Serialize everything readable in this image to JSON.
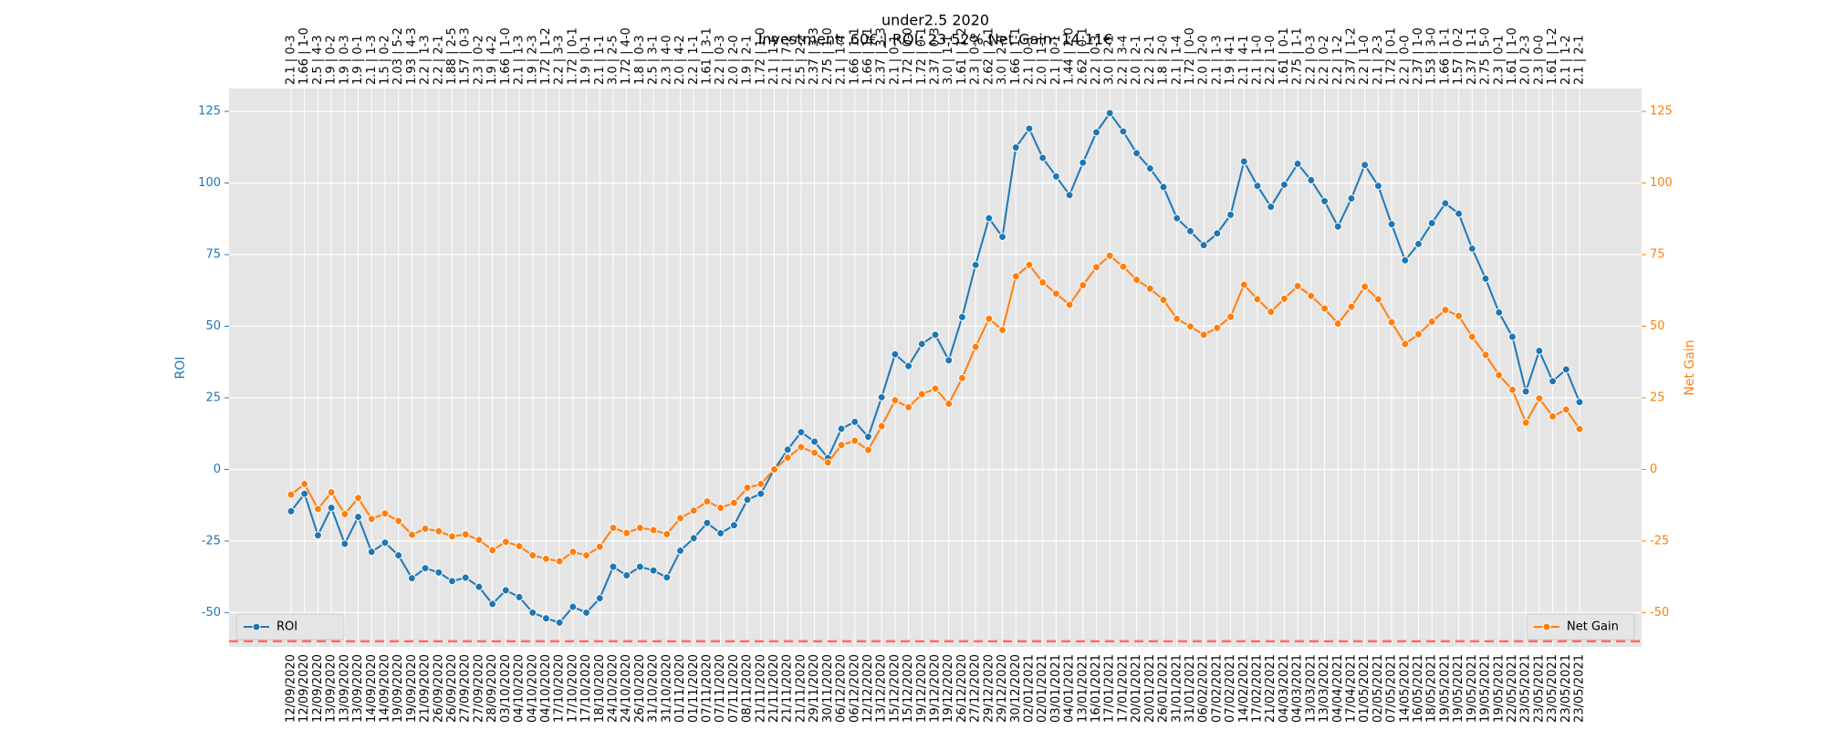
{
  "chart_data": {
    "type": "line",
    "title": "under2.5 2020",
    "subtitle": "Investment: 60€ | ROI: 23.52% Net Gain: 14.11€",
    "ylabel": "ROI",
    "y2label": "Net Gain",
    "categories": [
      "12/09/2020",
      "12/09/2020",
      "12/09/2020",
      "13/09/2020",
      "13/09/2020",
      "13/09/2020",
      "14/09/2020",
      "14/09/2020",
      "19/09/2020",
      "19/09/2020",
      "21/09/2020",
      "26/09/2020",
      "26/09/2020",
      "27/09/2020",
      "27/09/2020",
      "28/09/2020",
      "03/10/2020",
      "04/10/2020",
      "04/10/2020",
      "04/10/2020",
      "17/10/2020",
      "17/10/2020",
      "17/10/2020",
      "18/10/2020",
      "24/10/2020",
      "24/10/2020",
      "26/10/2020",
      "31/10/2020",
      "31/10/2020",
      "01/11/2020",
      "01/11/2020",
      "07/11/2020",
      "07/11/2020",
      "07/11/2020",
      "08/11/2020",
      "21/11/2020",
      "21/11/2020",
      "21/11/2020",
      "21/11/2020",
      "29/11/2020",
      "30/11/2020",
      "06/12/2020",
      "06/12/2020",
      "12/12/2020",
      "13/12/2020",
      "15/12/2020",
      "15/12/2020",
      "19/12/2020",
      "19/12/2020",
      "19/12/2020",
      "26/12/2020",
      "27/12/2020",
      "29/12/2020",
      "29/12/2020",
      "30/12/2020",
      "02/01/2021",
      "02/01/2021",
      "03/01/2021",
      "04/01/2021",
      "13/01/2021",
      "16/01/2021",
      "17/01/2021",
      "17/01/2021",
      "20/01/2021",
      "20/01/2021",
      "26/01/2021",
      "31/01/2021",
      "31/01/2021",
      "06/02/2021",
      "07/02/2021",
      "07/02/2021",
      "14/02/2021",
      "17/02/2021",
      "21/02/2021",
      "04/03/2021",
      "04/03/2021",
      "13/03/2021",
      "13/03/2021",
      "04/04/2021",
      "17/04/2021",
      "01/05/2021",
      "02/05/2021",
      "07/05/2021",
      "14/05/2021",
      "16/05/2021",
      "18/05/2021",
      "19/05/2021",
      "19/05/2021",
      "19/05/2021",
      "19/05/2021",
      "19/05/2021",
      "22/05/2021",
      "23/05/2021",
      "23/05/2021",
      "23/05/2021",
      "23/05/2021",
      "23/05/2021"
    ],
    "top_labels": [
      "2.1 | 0-3",
      "1.66 | 1-0",
      "2.5 | 4-3",
      "1.9 | 0-2",
      "1.9 | 0-3",
      "1.9 | 0-1",
      "2.1 | 1-3",
      "1.5 | 0-2",
      "2.03 | 5-2",
      "1.93 | 4-3",
      "2.2 | 1-3",
      "2.2 | 2-1",
      "1.88 | 2-5",
      "1.57 | 0-3",
      "2.3 | 0-2",
      "1.9 | 4-2",
      "1.66 | 1-0",
      "2.1 | 1-3",
      "1.9 | 2-3",
      "1.72 | 1-2",
      "2.2 | 3-3",
      "1.72 | 0-1",
      "1.9 | 0-1",
      "2.1 | 1-1",
      "3.0 | 2-5",
      "1.72 | 4-0",
      "1.8 | 0-3",
      "2.5 | 3-1",
      "2.3 | 4-0",
      "2.0 | 4-2",
      "2.2 | 1-1",
      "1.61 | 3-1",
      "2.2 | 0-3",
      "2.0 | 2-0",
      "1.9 | 2-1",
      "1.72 | 1-0",
      "2.1 | 1-6",
      "2.1 | 7-2",
      "2.5 | 2-2",
      "2.37 | 3-3",
      "2.75 | 1-0",
      "2.1 | 1-4",
      "1.66 | 1-1",
      "1.66 | 1-1",
      "2.37 | 3-3",
      "2.1 | 0-1",
      "1.72 | 0-0",
      "1.72 | 0-1",
      "2.37 | 0-3",
      "3.0 | 1-1",
      "1.61 | 1-2",
      "2.3 | 0-0",
      "2.62 | 2-1",
      "3.0 | 2-0",
      "1.66 | 1-1",
      "2.1 | 0-1",
      "2.0 | 1-1",
      "2.1 | 0-1",
      "1.44 | 2-0",
      "2.62 | 0-1",
      "2.2 | 0-3",
      "3.0 | 2-1",
      "2.2 | 3-4",
      "2.0 | 2-1",
      "2.2 | 2-1",
      "1.8 | 2-0",
      "2.1 | 1-4",
      "1.72 | 0-0",
      "2.0 | 2-0",
      "2.1 | 1-3",
      "1.9 | 4-1",
      "2.1 | 4-1",
      "2.1 | 1-0",
      "2.2 | 1-0",
      "1.61 | 0-1",
      "2.75 | 1-1",
      "2.2 | 0-3",
      "2.2 | 0-2",
      "2.2 | 1-2",
      "2.37 | 1-2",
      "2.2 | 1-0",
      "2.1 | 2-3",
      "1.72 | 0-1",
      "2.2 | 0-0",
      "2.37 | 1-0",
      "1.53 | 3-0",
      "1.66 | 1-1",
      "1.57 | 0-2",
      "2.37 | 1-1",
      "2.75 | 5-0",
      "2.3 | 0-1",
      "1.61 | 1-0",
      "2.0 | 2-3",
      "2.3 | 0-0",
      "1.61 | 1-2",
      "2.1 | 1-2",
      "2.1 | 2-1"
    ],
    "series": [
      {
        "name": "ROI",
        "color": "#1f77b4",
        "legend": "lower left",
        "values": [
          -14.6,
          -8.5,
          -23,
          -13.4,
          -26,
          -16.6,
          -28.8,
          -25.6,
          -30,
          -38,
          -34.5,
          -36,
          -39,
          -37.8,
          -41,
          -47,
          -42.2,
          -44.6,
          -50,
          -52,
          -53.5,
          -48,
          -50,
          -45,
          -34,
          -37,
          -34,
          -35.3,
          -37.7,
          -28.4,
          -24,
          -18.7,
          -22.3,
          -19.5,
          -10.6,
          -8.5,
          0,
          6.9,
          13,
          9.7,
          4,
          14.2,
          16.6,
          11.4,
          25.2,
          40.2,
          36.1,
          43.8,
          47,
          38.1,
          53.2,
          71.4,
          87.7,
          81.2,
          112.4,
          119,
          108.8,
          102.3,
          95.8,
          107.1,
          117.7,
          124.4,
          118,
          110.4,
          105.1,
          98.6,
          87.7,
          83.2,
          78.3,
          82.4,
          88.9,
          107.5,
          99,
          91.7,
          99.4,
          106.7,
          101,
          93.7,
          84.8,
          94.6,
          106.3,
          99,
          85.6,
          73,
          78.7,
          86,
          92.9,
          89.3,
          77.1,
          66.6,
          54.8,
          46.3,
          27.2,
          41.4,
          30.8,
          34.9,
          23.52
        ]
      },
      {
        "name": "Net Gain",
        "color": "#ff7f0e",
        "axis": "y2",
        "legend": "lower right",
        "values": [
          -8.8,
          -5.1,
          -13.8,
          -8,
          -15.6,
          -10,
          -17.3,
          -15.4,
          -18,
          -22.8,
          -20.7,
          -21.6,
          -23.4,
          -22.7,
          -24.6,
          -28.2,
          -25.3,
          -26.8,
          -30,
          -31.2,
          -32.1,
          -28.8,
          -30,
          -27,
          -20.4,
          -22.2,
          -20.4,
          -21.2,
          -22.6,
          -17,
          -14.4,
          -11.2,
          -13.4,
          -11.7,
          -6.4,
          -5.1,
          0,
          4.1,
          7.8,
          5.8,
          2.4,
          8.5,
          10,
          6.8,
          15.1,
          24.1,
          21.7,
          26.3,
          28.2,
          22.9,
          31.9,
          42.8,
          52.6,
          48.7,
          67.4,
          71.4,
          65.3,
          61.4,
          57.5,
          64.3,
          70.6,
          74.6,
          70.8,
          66.2,
          63.1,
          59.2,
          52.6,
          49.9,
          47,
          49.4,
          53.3,
          64.5,
          59.4,
          55,
          59.6,
          64,
          60.6,
          56.2,
          50.9,
          56.8,
          63.8,
          59.4,
          51.4,
          43.8,
          47.2,
          51.6,
          55.7,
          53.6,
          46.3,
          40,
          32.9,
          27.8,
          16.3,
          24.8,
          18.5,
          20.9,
          14.11
        ]
      }
    ],
    "hline": {
      "value": -60,
      "color": "#ff6b6b"
    },
    "ylim": [
      -62,
      133
    ],
    "yticks": [
      -50,
      -25,
      0,
      25,
      50,
      75,
      100,
      125
    ],
    "y2lim": [
      -62,
      133
    ],
    "y2ticks": [
      -50,
      -25,
      0,
      25,
      50,
      75,
      100,
      125
    ],
    "grid": true
  }
}
